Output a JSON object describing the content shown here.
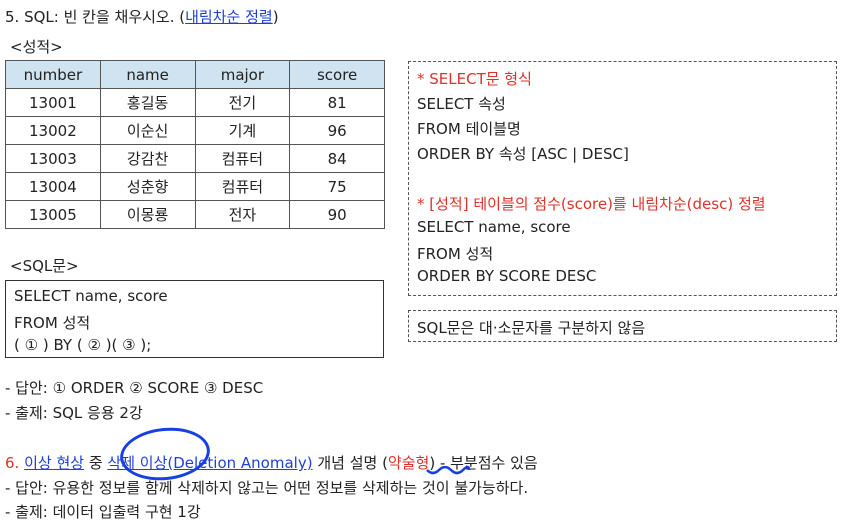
{
  "q5": {
    "title_prefix": "5. SQL: 빈 칸을 채우시오. (",
    "title_link": "내림차순 정렬",
    "title_suffix": ")",
    "table_caption": "<성적>",
    "table": {
      "headers": [
        "number",
        "name",
        "major",
        "score"
      ],
      "rows": [
        [
          "13001",
          "홍길동",
          "전기",
          "81"
        ],
        [
          "13002",
          "이순신",
          "기계",
          "96"
        ],
        [
          "13003",
          "강감찬",
          "컴퓨터",
          "84"
        ],
        [
          "13004",
          "성춘향",
          "컴퓨터",
          "75"
        ],
        [
          "13005",
          "이몽룡",
          "전자",
          "90"
        ]
      ]
    },
    "sql_caption": "<SQL문>",
    "sql_lines": [
      "SELECT name, score",
      "FROM 성적",
      "(  ①  ) BY (  ②  )(  ③  );"
    ],
    "format_box": {
      "heading1": "* SELECT문 형식",
      "line1": "SELECT 속성",
      "line2": "FROM 테이블명",
      "line3": "ORDER BY 속성 [ASC | DESC]",
      "heading2": "* [성적] 테이블의 점수(score)를 내림차순(desc) 정렬",
      "line4": "SELECT name, score",
      "line5": "FROM 성적",
      "line6": "ORDER BY SCORE DESC"
    },
    "note": "SQL문은 대·소문자를 구분하지 않음",
    "answer": "- 답안: ① ORDER   ② SCORE   ③ DESC",
    "source": "- 출제: SQL 응용 2강"
  },
  "q6": {
    "num": "6. ",
    "link1": "이상 현상",
    "mid1": " 중 ",
    "link2": "삭제 이상(Deletion Anomaly)",
    "mid2": " 개념 설명 (",
    "type": "약술형",
    "tail": ") - 부분점수 있음",
    "answer": "- 답안: 유용한 정보를 함께 삭제하지 않고는 어떤 정보를 삭제하는 것이 불가능하다.",
    "source": "- 출제: 데이터 입출력 구현 1강"
  },
  "colors": {
    "link": "#1f3fd8",
    "red": "#e0302a",
    "header_bg": "#cfe3f1",
    "circle": "#1840e0"
  }
}
